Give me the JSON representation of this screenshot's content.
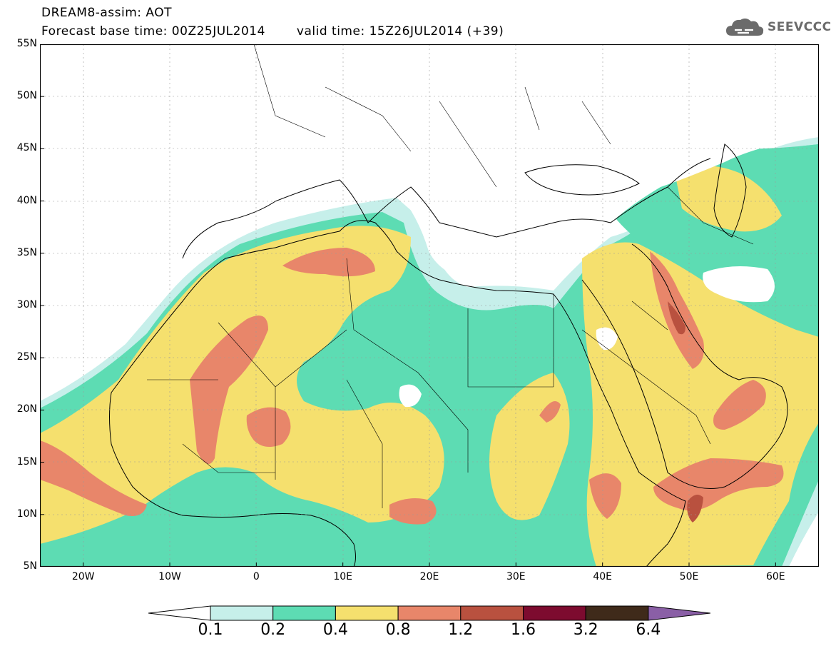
{
  "title": {
    "line1": "DREAM8-assim: AOT",
    "base_time": "Forecast base time: 00Z25JUL2014",
    "valid_time": "valid time: 15Z26JUL2014 (+39)"
  },
  "logo": {
    "text": "SEEVCCC",
    "icon": "cloud-icon",
    "color": "#6b6b6b"
  },
  "map": {
    "extent": {
      "lon_min": -25,
      "lon_max": 65,
      "lat_min": 5,
      "lat_max": 55
    },
    "lat_labels": [
      "55N",
      "50N",
      "45N",
      "40N",
      "35N",
      "30N",
      "25N",
      "20N",
      "15N",
      "10N",
      "5N"
    ],
    "lat_values": [
      55,
      50,
      45,
      40,
      35,
      30,
      25,
      20,
      15,
      10,
      5
    ],
    "lon_labels": [
      "20W",
      "10W",
      "0",
      "10E",
      "20E",
      "30E",
      "40E",
      "50E",
      "60E"
    ],
    "lon_values": [
      -20,
      -10,
      0,
      10,
      20,
      30,
      40,
      50,
      60
    ]
  },
  "legend": {
    "levels": [
      "0.1",
      "0.2",
      "0.4",
      "0.8",
      "1.2",
      "1.6",
      "3.2",
      "6.4"
    ],
    "colors": [
      "#ffffff",
      "#c6efea",
      "#5ddcb3",
      "#f5e06e",
      "#e8866a",
      "#b9513f",
      "#7d0b2f",
      "#3f2a1a",
      "#8a5fa6"
    ]
  }
}
